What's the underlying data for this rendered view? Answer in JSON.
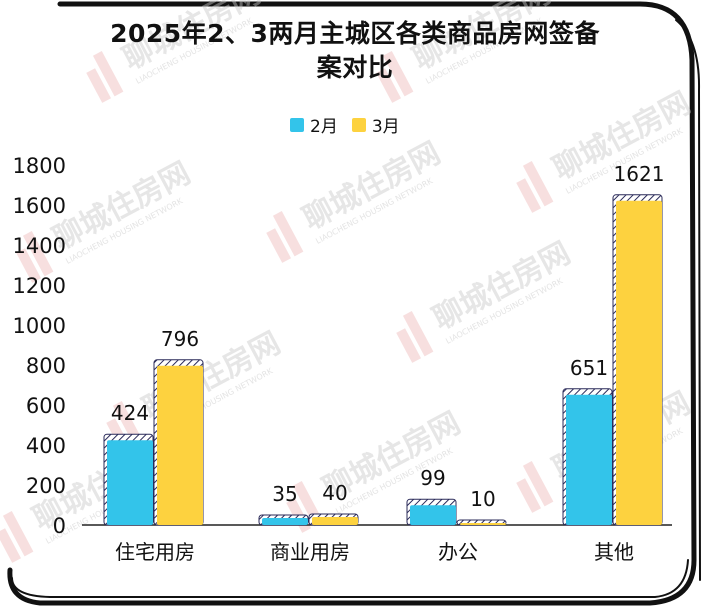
{
  "colors": {
    "series_2": "#33c4ea",
    "series_3": "#fdd23f",
    "frame": "#111111",
    "watermark": "#c9c9c9",
    "watermark_red": "#e7a4a4"
  },
  "watermark": {
    "text_cn": "聊城住房网",
    "text_en": "LIAOCHENG HOUSING NETWORK"
  },
  "chart_data": {
    "type": "bar",
    "title": "2025年2、3两月主城区各类商品房网签备案对比",
    "title_line1": "2025年2、3两月主城区各类商品房网签备",
    "title_line2": "案对比",
    "categories": [
      "住宅用房",
      "商业用房",
      "办公",
      "其他"
    ],
    "series": [
      {
        "name": "2月",
        "values": [
          424,
          35,
          99,
          651
        ]
      },
      {
        "name": "3月",
        "values": [
          796,
          40,
          10,
          1621
        ]
      }
    ],
    "ylim": [
      0,
      1800
    ],
    "yticks": [
      0,
      200,
      400,
      600,
      800,
      1000,
      1200,
      1400,
      1600,
      1800
    ],
    "legend": "top-center",
    "grid": false,
    "xlabel": "",
    "ylabel": ""
  }
}
